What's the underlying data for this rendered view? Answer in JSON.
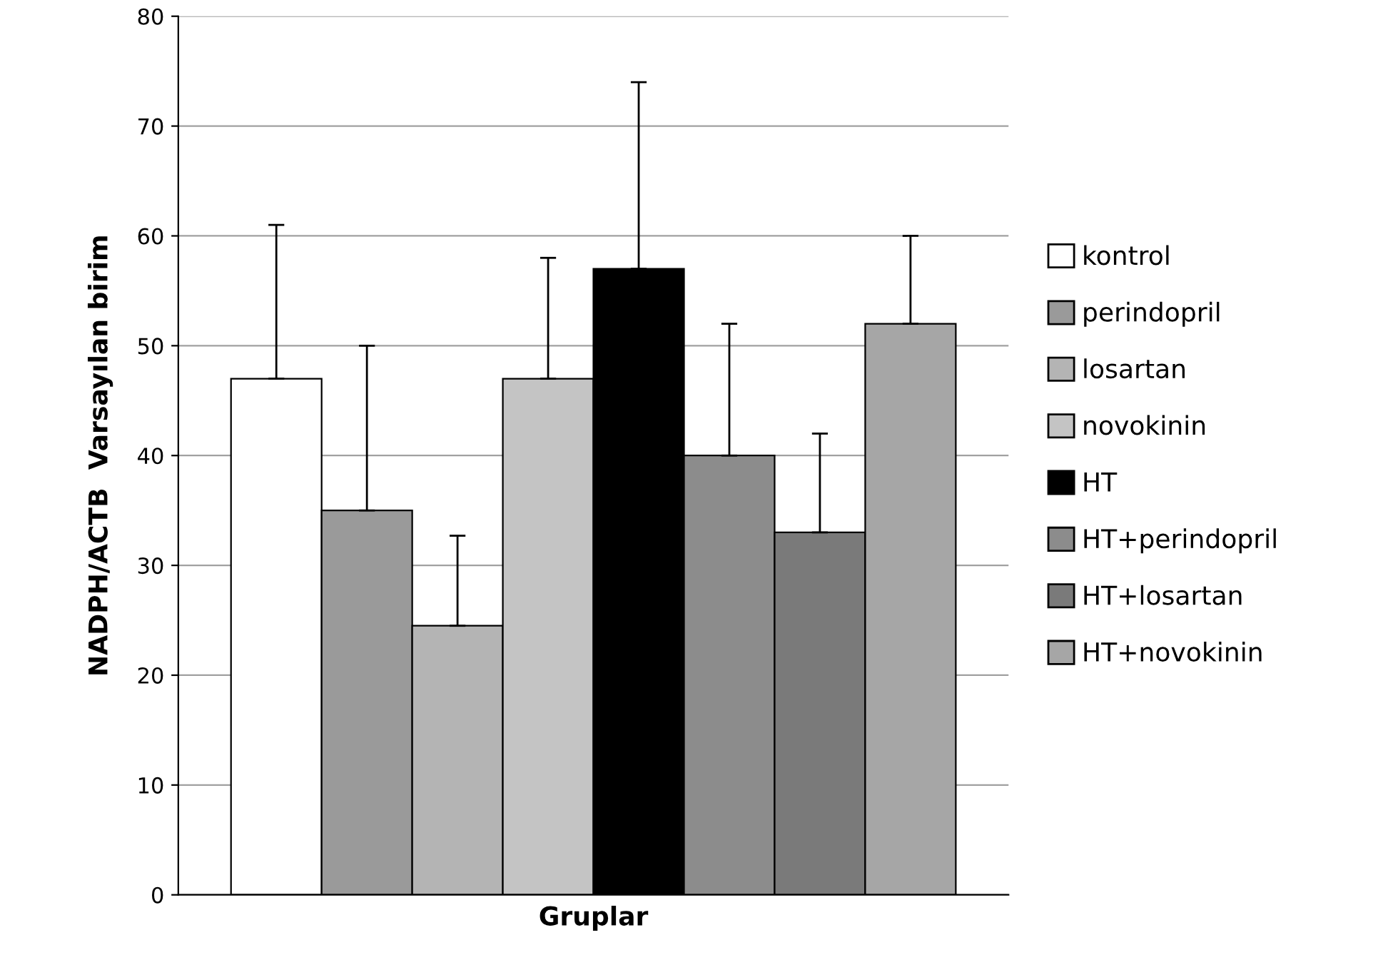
{
  "chart_data": {
    "type": "bar",
    "xlabel": "Gruplar",
    "ylabel": "NADPH/ACTB  Varsayılan birim",
    "categories": [
      null
    ],
    "series": [
      {
        "name": "kontrol",
        "color": "#ffffff",
        "values": [
          47
        ],
        "errors": [
          [
            47,
            61
          ]
        ]
      },
      {
        "name": "perindopril",
        "color": "#9a9a9a",
        "values": [
          35
        ],
        "errors": [
          [
            35,
            50
          ]
        ]
      },
      {
        "name": "losartan",
        "color": "#b4b4b4",
        "values": [
          24.5
        ],
        "errors": [
          [
            24.5,
            32.7
          ]
        ]
      },
      {
        "name": "novokinin",
        "color": "#c4c4c4",
        "values": [
          47
        ],
        "errors": [
          [
            47,
            58
          ]
        ]
      },
      {
        "name": "HT",
        "color": "#000000",
        "values": [
          57
        ],
        "errors": [
          [
            57,
            74
          ]
        ]
      },
      {
        "name": "HT+perindopril",
        "color": "#8c8c8c",
        "values": [
          40
        ],
        "errors": [
          [
            40,
            52
          ]
        ]
      },
      {
        "name": "HT+losartan",
        "color": "#7a7a7a",
        "values": [
          33
        ],
        "errors": [
          [
            33,
            42
          ]
        ]
      },
      {
        "name": "HT+novokinin",
        "color": "#a6a6a6",
        "values": [
          52
        ],
        "errors": [
          [
            52,
            60
          ]
        ]
      }
    ],
    "ylim": [
      0,
      80
    ],
    "yticks": [
      0,
      10,
      20,
      30,
      40,
      50,
      60,
      70,
      80
    ],
    "grid": "y",
    "legend": "right"
  }
}
